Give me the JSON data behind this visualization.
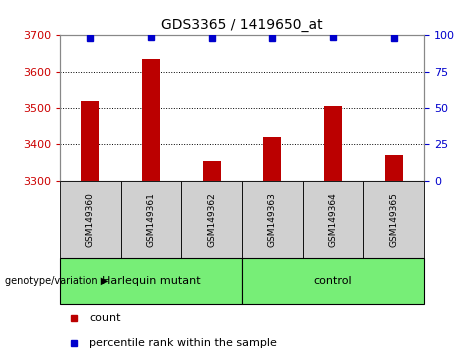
{
  "title": "GDS3365 / 1419650_at",
  "samples": [
    "GSM149360",
    "GSM149361",
    "GSM149362",
    "GSM149363",
    "GSM149364",
    "GSM149365"
  ],
  "counts": [
    3520,
    3635,
    3355,
    3420,
    3505,
    3370
  ],
  "percentiles": [
    98,
    99,
    98,
    98,
    99,
    98
  ],
  "ylim_left": [
    3300,
    3700
  ],
  "ylim_right": [
    0,
    100
  ],
  "yticks_left": [
    3300,
    3400,
    3500,
    3600,
    3700
  ],
  "yticks_right": [
    0,
    25,
    50,
    75,
    100
  ],
  "bar_color": "#bb0000",
  "dot_color": "#0000cc",
  "grid_color": "#000000",
  "groups": [
    {
      "label": "Harlequin mutant",
      "indices": [
        0,
        1,
        2
      ],
      "color": "#77ee77"
    },
    {
      "label": "control",
      "indices": [
        3,
        4,
        5
      ],
      "color": "#77ee77"
    }
  ],
  "group_label": "genotype/variation",
  "legend_count_label": "count",
  "legend_pct_label": "percentile rank within the sample",
  "tick_color_left": "#cc0000",
  "tick_color_right": "#0000cc",
  "background_color": "#ffffff",
  "plot_bg_color": "#ffffff",
  "sample_box_color": "#d0d0d0",
  "bar_width": 0.3
}
